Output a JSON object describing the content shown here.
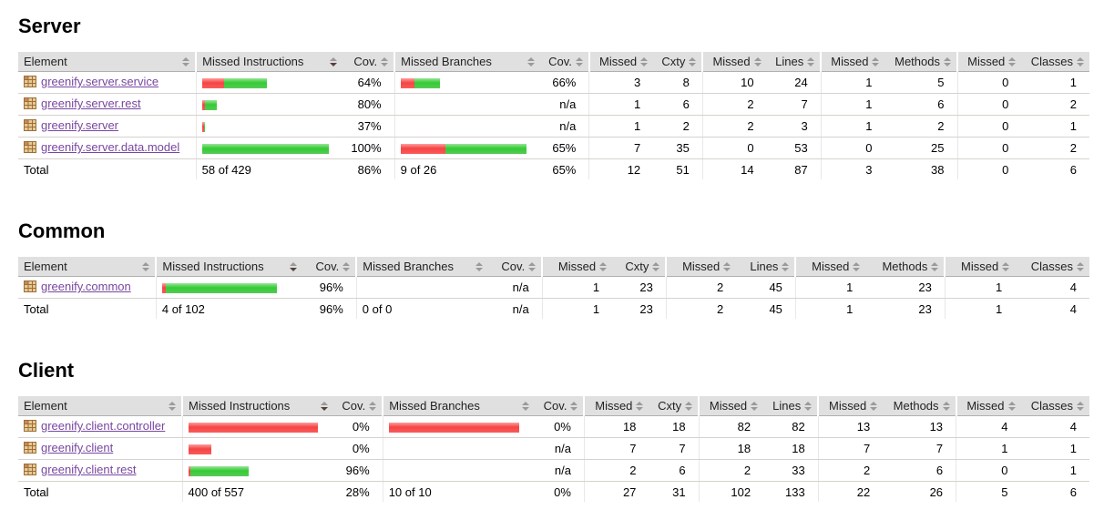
{
  "theme": {
    "header_bg": "#e0e0e0",
    "link_color": "#7846a0",
    "bar_red": "#f44444",
    "bar_green": "#33cc33",
    "row_border": "#d6d3ce"
  },
  "columns": [
    {
      "label": "Element",
      "sorted": false
    },
    {
      "label": "Missed Instructions",
      "sorted": true
    },
    {
      "label": "Cov.",
      "sorted": false
    },
    {
      "label": "Missed Branches",
      "sorted": false
    },
    {
      "label": "Cov.",
      "sorted": false
    },
    {
      "label": "Missed",
      "sorted": false
    },
    {
      "label": "Cxty",
      "sorted": false
    },
    {
      "label": "Missed",
      "sorted": false
    },
    {
      "label": "Lines",
      "sorted": false
    },
    {
      "label": "Missed",
      "sorted": false
    },
    {
      "label": "Methods",
      "sorted": false
    },
    {
      "label": "Missed",
      "sorted": false
    },
    {
      "label": "Classes",
      "sorted": false
    }
  ],
  "sections": [
    {
      "title": "Server",
      "rows": [
        {
          "name": "greenify.server.service",
          "instr_bar": {
            "red": 24,
            "green": 47
          },
          "instr_cov": "64%",
          "branch_bar": {
            "red": 15,
            "green": 28
          },
          "branch_cov": "66%",
          "nums": [
            "3",
            "8",
            "10",
            "24",
            "1",
            "5",
            "0",
            "1"
          ]
        },
        {
          "name": "greenify.server.rest",
          "instr_bar": {
            "red": 3,
            "green": 13
          },
          "instr_cov": "80%",
          "branch_bar": null,
          "branch_cov": "n/a",
          "nums": [
            "1",
            "6",
            "2",
            "7",
            "1",
            "6",
            "0",
            "2"
          ]
        },
        {
          "name": "greenify.server",
          "instr_bar": {
            "red": 2,
            "green": 1
          },
          "instr_cov": "37%",
          "branch_bar": null,
          "branch_cov": "n/a",
          "nums": [
            "1",
            "2",
            "2",
            "3",
            "1",
            "2",
            "0",
            "1"
          ]
        },
        {
          "name": "greenify.server.data.model",
          "instr_bar": {
            "red": 0,
            "green": 139
          },
          "instr_cov": "100%",
          "branch_bar": {
            "red": 49,
            "green": 89
          },
          "branch_cov": "65%",
          "nums": [
            "7",
            "35",
            "0",
            "53",
            "0",
            "25",
            "0",
            "2"
          ]
        }
      ],
      "total": {
        "label": "Total",
        "instr_text": "58 of 429",
        "instr_cov": "86%",
        "branch_text": "9 of 26",
        "branch_cov": "65%",
        "nums": [
          "12",
          "51",
          "14",
          "87",
          "3",
          "38",
          "0",
          "6"
        ]
      }
    },
    {
      "title": "Common",
      "rows": [
        {
          "name": "greenify.common",
          "instr_bar": {
            "red": 4,
            "green": 122
          },
          "instr_cov": "96%",
          "branch_bar": null,
          "branch_cov": "n/a",
          "nums": [
            "1",
            "23",
            "2",
            "45",
            "1",
            "23",
            "1",
            "4"
          ]
        }
      ],
      "total": {
        "label": "Total",
        "instr_text": "4 of 102",
        "instr_cov": "96%",
        "branch_text": "0 of 0",
        "branch_cov": "n/a",
        "nums": [
          "1",
          "23",
          "2",
          "45",
          "1",
          "23",
          "1",
          "4"
        ]
      }
    },
    {
      "title": "Client",
      "rows": [
        {
          "name": "greenify.client.controller",
          "instr_bar": {
            "red": 142,
            "green": 0
          },
          "instr_cov": "0%",
          "branch_bar": {
            "red": 143,
            "green": 0
          },
          "branch_cov": "0%",
          "nums": [
            "18",
            "18",
            "82",
            "82",
            "13",
            "13",
            "4",
            "4"
          ]
        },
        {
          "name": "greenify.client",
          "instr_bar": {
            "red": 25,
            "green": 0
          },
          "instr_cov": "0%",
          "branch_bar": null,
          "branch_cov": "n/a",
          "nums": [
            "7",
            "7",
            "18",
            "18",
            "7",
            "7",
            "1",
            "1"
          ]
        },
        {
          "name": "greenify.client.rest",
          "instr_bar": {
            "red": 2,
            "green": 64
          },
          "instr_cov": "96%",
          "branch_bar": null,
          "branch_cov": "n/a",
          "nums": [
            "2",
            "6",
            "2",
            "33",
            "2",
            "6",
            "0",
            "1"
          ]
        }
      ],
      "total": {
        "label": "Total",
        "instr_text": "400 of 557",
        "instr_cov": "28%",
        "branch_text": "10 of 10",
        "branch_cov": "0%",
        "nums": [
          "27",
          "31",
          "102",
          "133",
          "22",
          "26",
          "5",
          "6"
        ]
      }
    }
  ]
}
